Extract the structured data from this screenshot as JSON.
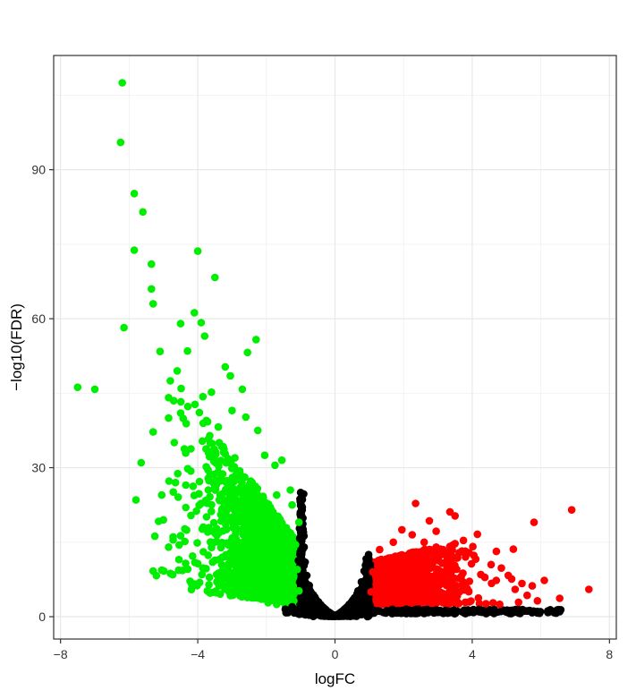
{
  "chart_data": {
    "type": "scatter",
    "title": "",
    "xlabel": "logFC",
    "ylabel": "−log10(FDR)",
    "xlim": [
      -8.2,
      8.2
    ],
    "ylim": [
      -4.5,
      113
    ],
    "x_ticks": [
      -8,
      -4,
      0,
      4,
      8
    ],
    "x_tick_labels": [
      "−8",
      "−4",
      "0",
      "4",
      "8"
    ],
    "y_ticks": [
      0,
      30,
      60,
      90
    ],
    "y_tick_labels": [
      "0",
      "30",
      "60",
      "90"
    ],
    "grid": true,
    "legend": "none",
    "colors": {
      "down": "#00ee00",
      "not_significant": "#000000",
      "up": "#ff0000",
      "panel_border": "#333333",
      "grid_major": "#e8e8e8",
      "grid_minor": "#f3f3f3"
    },
    "series": [
      {
        "color_key": "down",
        "points": [
          [
            -6.2,
            107.5
          ],
          [
            -6.25,
            95.5
          ],
          [
            -5.85,
            85.2
          ],
          [
            -5.6,
            81.5
          ],
          [
            -5.85,
            73.8
          ],
          [
            -5.35,
            71
          ],
          [
            -5.35,
            66
          ],
          [
            -5.3,
            63
          ],
          [
            -6.15,
            58.2
          ],
          [
            -4.0,
            73.6
          ],
          [
            -3.5,
            68.3
          ],
          [
            -4.1,
            61.2
          ],
          [
            -3.9,
            59.2
          ],
          [
            -4.5,
            59
          ],
          [
            -3.8,
            56.5
          ],
          [
            -2.3,
            55.8
          ],
          [
            -5.1,
            53.4
          ],
          [
            -4.3,
            53.5
          ],
          [
            -2.55,
            53.2
          ],
          [
            -4.6,
            49.5
          ],
          [
            -3.2,
            50.3
          ],
          [
            -3.05,
            48.5
          ],
          [
            -7.5,
            46.2
          ],
          [
            -7.0,
            45.8
          ],
          [
            -4.8,
            47.5
          ],
          [
            -4.85,
            44.1
          ],
          [
            -4.7,
            43.5
          ],
          [
            -3.6,
            45.2
          ],
          [
            -3.85,
            44.3
          ],
          [
            -2.7,
            45.8
          ],
          [
            -4.85,
            40
          ],
          [
            -4.5,
            41
          ],
          [
            -5.65,
            31
          ],
          [
            -5.8,
            23.5
          ],
          [
            -5.3,
            37.2
          ],
          [
            -5.25,
            16.2
          ],
          [
            -5.3,
            9.2
          ],
          [
            -5.0,
            19.5
          ],
          [
            -4.85,
            14
          ],
          [
            -4.5,
            16.3
          ],
          [
            -4.55,
            11.5
          ],
          [
            -4.35,
            22
          ],
          [
            -4.65,
            27
          ],
          [
            -5.05,
            24.5
          ],
          [
            -4.15,
            12.2
          ],
          [
            -3.85,
            9.8
          ],
          [
            -3.4,
            8.5
          ],
          [
            -2.9,
            7.5
          ],
          [
            -2.55,
            4.5
          ],
          [
            -2.35,
            3.8
          ],
          [
            -1.95,
            2.8
          ],
          [
            -1.7,
            2.5
          ],
          [
            -1.45,
            2.4
          ],
          [
            -1.2,
            3.2
          ],
          [
            -1.05,
            5.2
          ],
          [
            -1.1,
            9.5
          ],
          [
            -1.15,
            14.5
          ],
          [
            -1.05,
            19
          ],
          [
            -1.25,
            22.5
          ],
          [
            -1.3,
            25.5
          ],
          [
            -1.7,
            24.5
          ],
          [
            -1.55,
            31.5
          ],
          [
            -1.75,
            30.5
          ],
          [
            -2.05,
            32.5
          ],
          [
            -2.25,
            37.5
          ],
          [
            -2.6,
            40.2
          ],
          [
            -3.0,
            41.5
          ],
          [
            -3.4,
            38.2
          ],
          [
            -3.75,
            39.5
          ],
          [
            -4.2,
            33.8
          ],
          [
            -4.35,
            26.5
          ],
          [
            -3.95,
            27.2
          ]
        ]
      },
      {
        "color_key": "not_significant",
        "points": [
          [
            -1.0,
            25
          ],
          [
            -0.97,
            21.5
          ],
          [
            -0.93,
            17.5
          ],
          [
            -0.9,
            14
          ],
          [
            -0.87,
            11
          ],
          [
            -0.82,
            8.3
          ],
          [
            -0.75,
            6.3
          ],
          [
            -0.67,
            4.6
          ],
          [
            -0.57,
            3.3
          ],
          [
            -0.45,
            2.2
          ],
          [
            -0.32,
            1.3
          ],
          [
            -0.2,
            0.7
          ],
          [
            -0.08,
            0.3
          ],
          [
            0.0,
            0.1
          ],
          [
            0.08,
            0.3
          ],
          [
            0.2,
            0.8
          ],
          [
            0.32,
            1.5
          ],
          [
            0.45,
            2.5
          ],
          [
            0.57,
            3.8
          ],
          [
            0.67,
            5.2
          ],
          [
            0.77,
            7
          ],
          [
            0.85,
            9.2
          ],
          [
            0.92,
            11
          ],
          [
            0.98,
            12.5
          ],
          [
            -1.4,
            1.3
          ],
          [
            -1.1,
            1.2
          ],
          [
            -0.8,
            1.0
          ],
          [
            0.7,
            1.0
          ],
          [
            1.0,
            1.0
          ],
          [
            1.3,
            1.1
          ],
          [
            1.6,
            1.2
          ],
          [
            1.9,
            1.1
          ],
          [
            2.2,
            1.0
          ],
          [
            2.5,
            1.2
          ],
          [
            2.9,
            1.0
          ],
          [
            3.3,
            1.1
          ],
          [
            3.7,
            1.0
          ],
          [
            4.1,
            1.1
          ],
          [
            4.6,
            1.0
          ],
          [
            5.0,
            0.9
          ],
          [
            5.4,
            1.0
          ],
          [
            5.8,
            1.0
          ],
          [
            6.2,
            0.9
          ],
          [
            6.55,
            1.0
          ],
          [
            -1.45,
            1.5
          ],
          [
            -1.25,
            2.0
          ],
          [
            -1.15,
            0.9
          ]
        ]
      },
      {
        "color_key": "up",
        "points": [
          [
            2.35,
            22.8
          ],
          [
            3.35,
            21.1
          ],
          [
            3.5,
            20.3
          ],
          [
            2.75,
            19.3
          ],
          [
            6.9,
            21.5
          ],
          [
            5.8,
            19
          ],
          [
            4.15,
            16.6
          ],
          [
            2.95,
            17.2
          ],
          [
            5.2,
            13.6
          ],
          [
            1.7,
            15
          ],
          [
            1.3,
            13.5
          ],
          [
            1.1,
            9
          ],
          [
            1.05,
            5
          ],
          [
            1.2,
            3.5
          ],
          [
            1.6,
            3.2
          ],
          [
            2.2,
            3.1
          ],
          [
            3.0,
            3.0
          ],
          [
            3.8,
            2.9
          ],
          [
            4.4,
            2.6
          ],
          [
            4.8,
            2.5
          ],
          [
            5.35,
            2.9
          ],
          [
            5.9,
            3.2
          ],
          [
            6.55,
            3.7
          ],
          [
            7.4,
            5.5
          ],
          [
            6.1,
            7.3
          ],
          [
            5.75,
            6.2
          ],
          [
            5.45,
            6.7
          ],
          [
            5.15,
            7.6
          ],
          [
            4.85,
            9.8
          ],
          [
            4.55,
            10.5
          ],
          [
            4.25,
            8.5
          ],
          [
            4.1,
            11.6
          ],
          [
            3.8,
            13.2
          ],
          [
            3.55,
            11.8
          ],
          [
            3.25,
            12.5
          ],
          [
            2.95,
            14
          ],
          [
            2.6,
            15
          ],
          [
            2.25,
            16.5
          ],
          [
            1.95,
            17.5
          ],
          [
            4.7,
            7.3
          ],
          [
            5.25,
            5.5
          ],
          [
            5.6,
            4.3
          ]
        ]
      }
    ]
  }
}
